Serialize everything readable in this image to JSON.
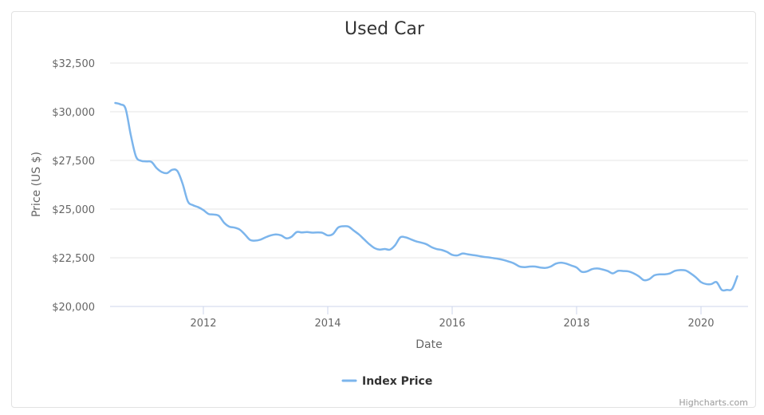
{
  "chart_data": {
    "type": "line",
    "title": "Used Car",
    "xlabel": "Date",
    "ylabel": "Price (US $)",
    "ylim": [
      20000,
      32500
    ],
    "yticks": [
      20000,
      22500,
      25000,
      27500,
      30000,
      32500
    ],
    "ytick_labels": [
      "$20,000",
      "$22,500",
      "$25,000",
      "$27,500",
      "$30,000",
      "$32,500"
    ],
    "xticks": [
      "2012",
      "2014",
      "2016",
      "2018",
      "2020"
    ],
    "grid": true,
    "legend_position": "bottom-center",
    "series": [
      {
        "name": "Index Price",
        "color": "#7cb5ec",
        "points": [
          [
            "2010-08",
            30450
          ],
          [
            "2010-09",
            30380
          ],
          [
            "2010-10",
            30150
          ],
          [
            "2010-11",
            28800
          ],
          [
            "2010-12",
            27700
          ],
          [
            "2011-01",
            27480
          ],
          [
            "2011-02",
            27450
          ],
          [
            "2011-03",
            27420
          ],
          [
            "2011-04",
            27100
          ],
          [
            "2011-05",
            26900
          ],
          [
            "2011-06",
            26850
          ],
          [
            "2011-07",
            27020
          ],
          [
            "2011-08",
            26950
          ],
          [
            "2011-09",
            26300
          ],
          [
            "2011-10",
            25400
          ],
          [
            "2011-11",
            25200
          ],
          [
            "2011-12",
            25100
          ],
          [
            "2012-01",
            24950
          ],
          [
            "2012-02",
            24750
          ],
          [
            "2012-03",
            24720
          ],
          [
            "2012-04",
            24650
          ],
          [
            "2012-05",
            24300
          ],
          [
            "2012-06",
            24100
          ],
          [
            "2012-07",
            24050
          ],
          [
            "2012-08",
            23950
          ],
          [
            "2012-09",
            23700
          ],
          [
            "2012-10",
            23420
          ],
          [
            "2012-11",
            23380
          ],
          [
            "2012-12",
            23430
          ],
          [
            "2013-01",
            23550
          ],
          [
            "2013-02",
            23650
          ],
          [
            "2013-03",
            23700
          ],
          [
            "2013-04",
            23650
          ],
          [
            "2013-05",
            23500
          ],
          [
            "2013-06",
            23580
          ],
          [
            "2013-07",
            23820
          ],
          [
            "2013-08",
            23800
          ],
          [
            "2013-09",
            23820
          ],
          [
            "2013-10",
            23790
          ],
          [
            "2013-11",
            23800
          ],
          [
            "2013-12",
            23780
          ],
          [
            "2014-01",
            23650
          ],
          [
            "2014-02",
            23720
          ],
          [
            "2014-03",
            24050
          ],
          [
            "2014-04",
            24120
          ],
          [
            "2014-05",
            24100
          ],
          [
            "2014-06",
            23900
          ],
          [
            "2014-07",
            23700
          ],
          [
            "2014-08",
            23450
          ],
          [
            "2014-09",
            23200
          ],
          [
            "2014-10",
            23000
          ],
          [
            "2014-11",
            22920
          ],
          [
            "2014-12",
            22950
          ],
          [
            "2015-01",
            22920
          ],
          [
            "2015-02",
            23150
          ],
          [
            "2015-03",
            23550
          ],
          [
            "2015-04",
            23550
          ],
          [
            "2015-05",
            23450
          ],
          [
            "2015-06",
            23350
          ],
          [
            "2015-07",
            23280
          ],
          [
            "2015-08",
            23200
          ],
          [
            "2015-09",
            23050
          ],
          [
            "2015-10",
            22950
          ],
          [
            "2015-11",
            22900
          ],
          [
            "2015-12",
            22800
          ],
          [
            "2016-01",
            22650
          ],
          [
            "2016-02",
            22620
          ],
          [
            "2016-03",
            22720
          ],
          [
            "2016-04",
            22680
          ],
          [
            "2016-05",
            22640
          ],
          [
            "2016-06",
            22600
          ],
          [
            "2016-07",
            22550
          ],
          [
            "2016-08",
            22520
          ],
          [
            "2016-09",
            22480
          ],
          [
            "2016-10",
            22440
          ],
          [
            "2016-11",
            22380
          ],
          [
            "2016-12",
            22300
          ],
          [
            "2017-01",
            22200
          ],
          [
            "2017-02",
            22050
          ],
          [
            "2017-03",
            22020
          ],
          [
            "2017-04",
            22050
          ],
          [
            "2017-05",
            22050
          ],
          [
            "2017-06",
            22000
          ],
          [
            "2017-07",
            21980
          ],
          [
            "2017-08",
            22050
          ],
          [
            "2017-09",
            22200
          ],
          [
            "2017-10",
            22250
          ],
          [
            "2017-11",
            22200
          ],
          [
            "2017-12",
            22100
          ],
          [
            "2018-01",
            22000
          ],
          [
            "2018-02",
            21780
          ],
          [
            "2018-03",
            21800
          ],
          [
            "2018-04",
            21920
          ],
          [
            "2018-05",
            21950
          ],
          [
            "2018-06",
            21900
          ],
          [
            "2018-07",
            21820
          ],
          [
            "2018-08",
            21700
          ],
          [
            "2018-09",
            21830
          ],
          [
            "2018-10",
            21820
          ],
          [
            "2018-11",
            21800
          ],
          [
            "2018-12",
            21700
          ],
          [
            "2019-01",
            21550
          ],
          [
            "2019-02",
            21350
          ],
          [
            "2019-03",
            21400
          ],
          [
            "2019-04",
            21600
          ],
          [
            "2019-05",
            21650
          ],
          [
            "2019-06",
            21650
          ],
          [
            "2019-07",
            21700
          ],
          [
            "2019-08",
            21830
          ],
          [
            "2019-09",
            21870
          ],
          [
            "2019-10",
            21850
          ],
          [
            "2019-11",
            21700
          ],
          [
            "2019-12",
            21500
          ],
          [
            "2020-01",
            21250
          ],
          [
            "2020-02",
            21150
          ],
          [
            "2020-03",
            21150
          ],
          [
            "2020-04",
            21250
          ],
          [
            "2020-05",
            20850
          ],
          [
            "2020-06",
            20850
          ],
          [
            "2020-07",
            20900
          ],
          [
            "2020-08",
            21550
          ]
        ]
      }
    ]
  },
  "credits": "Highcharts.com"
}
